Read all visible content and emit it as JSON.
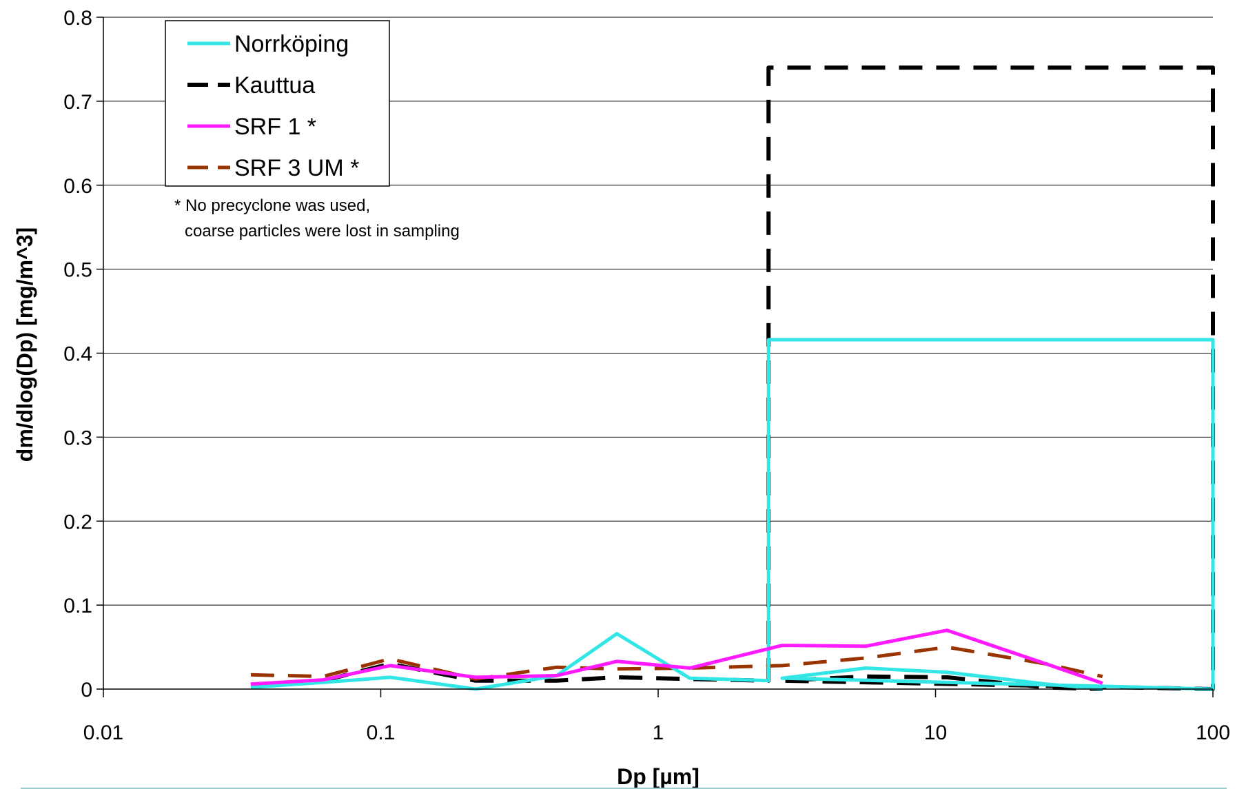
{
  "chart_data": {
    "type": "line",
    "title": "",
    "xlabel": "Dp [µm]",
    "ylabel": "dm/dlog(Dp) [mg/m^3]",
    "x_scale": "log",
    "xlim": [
      0.01,
      100
    ],
    "ylim": [
      0,
      0.8
    ],
    "x_ticks": [
      0.01,
      0.1,
      1,
      10,
      100
    ],
    "x_tick_labels": [
      "0.01",
      "0.1",
      "1",
      "10",
      "100"
    ],
    "y_ticks": [
      0,
      0.1,
      0.2,
      0.3,
      0.4,
      0.5,
      0.6,
      0.7,
      0.8
    ],
    "y_tick_labels": [
      "0",
      "0.1",
      "0.2",
      "0.3",
      "0.4",
      "0.5",
      "0.6",
      "0.7",
      "0.8"
    ],
    "grid": "horizontal",
    "legend_position": "top-left",
    "note": [
      "* No precyclone was used,",
      "coarse particles were lost in sampling"
    ],
    "series": [
      {
        "name": "Norrköping",
        "color": "#33e6e6",
        "style": "solid",
        "x": [
          0.034,
          0.062,
          0.108,
          0.22,
          0.43,
          0.71,
          1.3,
          2.5,
          2.5,
          100,
          100,
          2.8,
          5.6,
          11,
          25,
          40
        ],
        "y": [
          0.002,
          0.008,
          0.014,
          0.0,
          0.016,
          0.066,
          0.013,
          0.01,
          0.416,
          0.416,
          0.0,
          0.013,
          0.025,
          0.02,
          0.006,
          0.0
        ]
      },
      {
        "name": "Kauttua",
        "color": "#000000",
        "style": "dashed",
        "x": [
          0.034,
          0.062,
          0.108,
          0.22,
          0.43,
          0.71,
          1.3,
          2.5,
          2.5,
          100,
          100,
          2.8,
          5.6,
          11,
          25,
          40
        ],
        "y": [
          0.005,
          0.01,
          0.03,
          0.01,
          0.01,
          0.014,
          0.012,
          0.01,
          0.74,
          0.74,
          0.0,
          0.01,
          0.015,
          0.014,
          0.002,
          0.0
        ]
      },
      {
        "name": "SRF 1 *",
        "color": "#ff1aff",
        "style": "solid",
        "x": [
          0.034,
          0.062,
          0.108,
          0.22,
          0.43,
          0.71,
          1.3,
          2.8,
          5.6,
          11,
          25,
          40
        ],
        "y": [
          0.006,
          0.011,
          0.028,
          0.014,
          0.016,
          0.033,
          0.025,
          0.052,
          0.051,
          0.07,
          0.03,
          0.007
        ]
      },
      {
        "name": "SRF 3 UM *",
        "color": "#993300",
        "style": "dashed",
        "x": [
          0.034,
          0.062,
          0.108,
          0.22,
          0.43,
          0.71,
          1.3,
          2.8,
          5.6,
          11,
          25,
          40
        ],
        "y": [
          0.017,
          0.015,
          0.036,
          0.012,
          0.026,
          0.024,
          0.025,
          0.028,
          0.037,
          0.05,
          0.03,
          0.015
        ]
      }
    ]
  }
}
